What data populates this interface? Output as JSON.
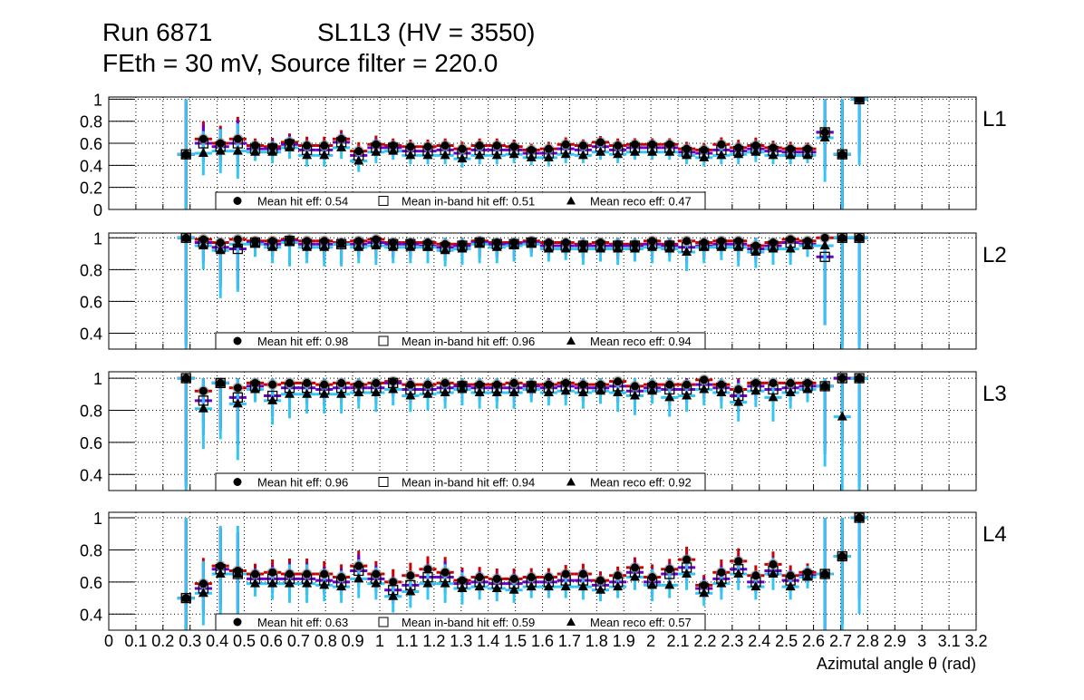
{
  "title": {
    "run": "Run 6871",
    "chamber": "SL1L3 (HV = 3550)",
    "settings": "FEth = 30 mV, Source filter = 220.0"
  },
  "colors": {
    "hit": "#cc0000",
    "inband": "#6a00d0",
    "reco": "#33c6f5",
    "marker": "#000000"
  },
  "chart_data": {
    "type": "scatter",
    "xlabel": "Azimutal angle θ (rad)",
    "xlim": [
      0,
      3.2
    ],
    "xticks": [
      "0",
      "0.1",
      "0.2",
      "0.3",
      "0.4",
      "0.5",
      "0.6",
      "0.7",
      "0.8",
      "0.9",
      "1",
      "1.1",
      "1.2",
      "1.3",
      "1.4",
      "1.5",
      "1.6",
      "1.7",
      "1.8",
      "1.9",
      "2",
      "2.1",
      "2.2",
      "2.3",
      "2.4",
      "2.5",
      "2.6",
      "2.7",
      "2.8",
      "2.9",
      "3",
      "3.1",
      "3.2"
    ],
    "grid": true,
    "bin_half_width": 0.032,
    "theta": [
      0.285,
      0.349,
      0.412,
      0.476,
      0.54,
      0.604,
      0.667,
      0.731,
      0.795,
      0.858,
      0.922,
      0.986,
      1.049,
      1.113,
      1.177,
      1.241,
      1.304,
      1.368,
      1.432,
      1.495,
      1.559,
      1.623,
      1.686,
      1.75,
      1.814,
      1.878,
      1.941,
      2.005,
      2.069,
      2.132,
      2.196,
      2.26,
      2.323,
      2.387,
      2.451,
      2.515,
      2.578,
      2.642,
      2.706,
      2.769
    ],
    "panels": [
      {
        "label": "L1",
        "ylim": [
          0,
          1.02
        ],
        "yticks": [
          "0",
          "0.2",
          "0.4",
          "0.6",
          "0.8",
          "1"
        ],
        "legend": {
          "hit": "Mean hit  eff: 0.54",
          "inband": "Mean in-band hit eff: 0.51",
          "reco": "Mean reco eff: 0.47"
        },
        "series": [
          {
            "name": "hit",
            "values": [
              0.5,
              0.64,
              0.6,
              0.64,
              0.58,
              0.57,
              0.61,
              0.58,
              0.58,
              0.64,
              0.53,
              0.59,
              0.58,
              0.57,
              0.57,
              0.58,
              0.55,
              0.58,
              0.58,
              0.57,
              0.54,
              0.55,
              0.59,
              0.58,
              0.61,
              0.58,
              0.59,
              0.59,
              0.59,
              0.55,
              0.54,
              0.59,
              0.56,
              0.58,
              0.56,
              0.55,
              0.55,
              0.7,
              0.5,
              1.0
            ]
          },
          {
            "name": "inband",
            "values": [
              0.5,
              0.6,
              0.57,
              0.6,
              0.55,
              0.55,
              0.59,
              0.54,
              0.54,
              0.61,
              0.49,
              0.56,
              0.56,
              0.53,
              0.53,
              0.54,
              0.51,
              0.54,
              0.54,
              0.54,
              0.51,
              0.51,
              0.55,
              0.54,
              0.57,
              0.54,
              0.56,
              0.56,
              0.56,
              0.52,
              0.51,
              0.54,
              0.53,
              0.55,
              0.53,
              0.52,
              0.52,
              0.7,
              0.5,
              1.0
            ]
          },
          {
            "name": "reco",
            "values": [
              0.5,
              0.51,
              0.53,
              0.53,
              0.52,
              0.52,
              0.56,
              0.49,
              0.49,
              0.56,
              0.44,
              0.52,
              0.53,
              0.49,
              0.49,
              0.49,
              0.46,
              0.49,
              0.49,
              0.5,
              0.47,
              0.47,
              0.5,
              0.49,
              0.52,
              0.5,
              0.52,
              0.52,
              0.52,
              0.49,
              0.47,
              0.49,
              0.5,
              0.52,
              0.49,
              0.49,
              0.49,
              0.65,
              0.5,
              1.0
            ]
          }
        ],
        "err": [
          0.6,
          0.2,
          0.2,
          0.25,
          0.08,
          0.1,
          0.1,
          0.1,
          0.1,
          0.1,
          0.1,
          0.1,
          0.08,
          0.08,
          0.08,
          0.08,
          0.08,
          0.08,
          0.08,
          0.08,
          0.07,
          0.08,
          0.08,
          0.07,
          0.07,
          0.08,
          0.07,
          0.07,
          0.07,
          0.08,
          0.08,
          0.08,
          0.09,
          0.09,
          0.08,
          0.08,
          0.07,
          0.4,
          0.6,
          0.6
        ]
      },
      {
        "label": "L2",
        "ylim": [
          0.3,
          1.03
        ],
        "yticks": [
          "0.4",
          "0.6",
          "0.8",
          "1"
        ],
        "legend": {
          "hit": "Mean hit  eff: 0.98",
          "inband": "Mean in-band hit eff: 0.96",
          "reco": "Mean reco eff: 0.94"
        },
        "series": [
          {
            "name": "hit",
            "values": [
              1.0,
              0.99,
              0.97,
              0.99,
              0.98,
              0.98,
              0.99,
              0.98,
              0.98,
              0.97,
              0.98,
              0.99,
              0.97,
              0.97,
              0.97,
              0.96,
              0.96,
              0.98,
              0.97,
              0.97,
              0.98,
              0.97,
              0.97,
              0.96,
              0.97,
              0.96,
              0.96,
              0.98,
              0.96,
              0.98,
              0.97,
              0.98,
              0.98,
              0.95,
              0.97,
              0.99,
              0.98,
              1.0,
              1.0,
              1.0
            ]
          },
          {
            "name": "inband",
            "values": [
              1.0,
              0.97,
              0.94,
              0.93,
              0.97,
              0.96,
              0.98,
              0.96,
              0.96,
              0.96,
              0.96,
              0.97,
              0.96,
              0.96,
              0.95,
              0.94,
              0.95,
              0.97,
              0.96,
              0.96,
              0.97,
              0.95,
              0.95,
              0.95,
              0.95,
              0.95,
              0.95,
              0.96,
              0.95,
              0.94,
              0.95,
              0.96,
              0.96,
              0.93,
              0.95,
              0.97,
              0.96,
              0.88,
              1.0,
              1.0
            ]
          },
          {
            "name": "reco",
            "values": [
              1.0,
              0.95,
              0.92,
              0.96,
              0.96,
              0.94,
              0.97,
              0.94,
              0.94,
              0.96,
              0.94,
              0.95,
              0.94,
              0.94,
              0.94,
              0.92,
              0.93,
              0.96,
              0.94,
              0.95,
              0.96,
              0.93,
              0.93,
              0.93,
              0.93,
              0.93,
              0.93,
              0.94,
              0.93,
              0.91,
              0.94,
              0.94,
              0.94,
              0.91,
              0.93,
              0.93,
              0.95,
              0.95,
              1.0,
              1.0
            ]
          }
        ],
        "err": [
          0.8,
          0.15,
          0.3,
          0.3,
          0.08,
          0.1,
          0.15,
          0.1,
          0.12,
          0.14,
          0.1,
          0.12,
          0.1,
          0.1,
          0.1,
          0.1,
          0.1,
          0.12,
          0.1,
          0.1,
          0.08,
          0.08,
          0.07,
          0.1,
          0.08,
          0.1,
          0.08,
          0.1,
          0.08,
          0.12,
          0.1,
          0.08,
          0.12,
          0.1,
          0.1,
          0.1,
          0.07,
          0.5,
          0.8,
          0.8
        ]
      },
      {
        "label": "L3",
        "ylim": [
          0.3,
          1.04
        ],
        "yticks": [
          "0.4",
          "0.6",
          "0.8",
          "1"
        ],
        "legend": {
          "hit": "Mean hit  eff: 0.96",
          "inband": "Mean in-band hit eff: 0.94",
          "reco": "Mean reco eff: 0.92"
        },
        "series": [
          {
            "name": "hit",
            "values": [
              1.0,
              0.92,
              0.97,
              0.94,
              0.97,
              0.96,
              0.97,
              0.97,
              0.96,
              0.97,
              0.96,
              0.97,
              0.98,
              0.96,
              0.96,
              0.97,
              0.96,
              0.96,
              0.96,
              0.97,
              0.96,
              0.96,
              0.97,
              0.96,
              0.96,
              0.98,
              0.95,
              0.96,
              0.96,
              0.96,
              0.99,
              0.96,
              0.93,
              0.97,
              0.97,
              0.97,
              0.97,
              0.95,
              1.0,
              1.0
            ]
          },
          {
            "name": "inband",
            "values": [
              1.0,
              0.86,
              0.97,
              0.88,
              0.95,
              0.89,
              0.94,
              0.94,
              0.93,
              0.94,
              0.94,
              0.94,
              0.97,
              0.93,
              0.93,
              0.94,
              0.95,
              0.94,
              0.94,
              0.94,
              0.95,
              0.94,
              0.95,
              0.94,
              0.94,
              0.95,
              0.92,
              0.94,
              0.93,
              0.93,
              0.96,
              0.94,
              0.89,
              0.95,
              0.93,
              0.94,
              0.95,
              0.95,
              1.0,
              1.0
            ]
          },
          {
            "name": "reco",
            "values": [
              1.0,
              0.81,
              0.97,
              0.84,
              0.93,
              0.86,
              0.9,
              0.9,
              0.9,
              0.9,
              0.91,
              0.91,
              0.93,
              0.89,
              0.9,
              0.91,
              0.93,
              0.91,
              0.91,
              0.91,
              0.93,
              0.91,
              0.92,
              0.91,
              0.92,
              0.91,
              0.89,
              0.92,
              0.88,
              0.89,
              0.93,
              0.91,
              0.85,
              0.92,
              0.88,
              0.91,
              0.93,
              0.95,
              0.76,
              1.0
            ]
          }
        ],
        "err": [
          0.8,
          0.25,
          0.35,
          0.35,
          0.08,
          0.15,
          0.15,
          0.12,
          0.12,
          0.12,
          0.1,
          0.12,
          0.1,
          0.1,
          0.1,
          0.1,
          0.1,
          0.1,
          0.1,
          0.1,
          0.08,
          0.08,
          0.09,
          0.1,
          0.08,
          0.12,
          0.12,
          0.08,
          0.12,
          0.1,
          0.1,
          0.1,
          0.12,
          0.1,
          0.15,
          0.1,
          0.08,
          0.5,
          0.5,
          0.8
        ]
      },
      {
        "label": "L4",
        "ylim": [
          0.3,
          1.034
        ],
        "yticks": [
          "0.4",
          "0.6",
          "0.8",
          "1"
        ],
        "legend": {
          "hit": "Mean hit  eff: 0.63",
          "inband": "Mean in-band hit eff: 0.59",
          "reco": "Mean reco eff: 0.57"
        },
        "series": [
          {
            "name": "hit",
            "values": [
              0.5,
              0.59,
              0.7,
              0.67,
              0.65,
              0.66,
              0.65,
              0.65,
              0.65,
              0.63,
              0.7,
              0.65,
              0.6,
              0.64,
              0.68,
              0.66,
              0.61,
              0.63,
              0.62,
              0.62,
              0.63,
              0.63,
              0.65,
              0.65,
              0.61,
              0.64,
              0.69,
              0.63,
              0.68,
              0.74,
              0.58,
              0.66,
              0.73,
              0.64,
              0.71,
              0.64,
              0.66,
              0.65,
              0.76,
              1.0
            ]
          },
          {
            "name": "inband",
            "values": [
              0.5,
              0.56,
              0.68,
              0.65,
              0.62,
              0.62,
              0.62,
              0.62,
              0.61,
              0.6,
              0.67,
              0.62,
              0.55,
              0.58,
              0.63,
              0.63,
              0.59,
              0.6,
              0.59,
              0.59,
              0.6,
              0.6,
              0.61,
              0.61,
              0.58,
              0.6,
              0.66,
              0.6,
              0.65,
              0.69,
              0.56,
              0.62,
              0.68,
              0.6,
              0.67,
              0.61,
              0.64,
              0.65,
              0.76,
              1.0
            ]
          },
          {
            "name": "reco",
            "values": [
              0.5,
              0.53,
              0.65,
              0.65,
              0.59,
              0.59,
              0.59,
              0.59,
              0.58,
              0.57,
              0.62,
              0.59,
              0.51,
              0.54,
              0.59,
              0.59,
              0.56,
              0.57,
              0.56,
              0.55,
              0.57,
              0.57,
              0.57,
              0.57,
              0.55,
              0.57,
              0.63,
              0.58,
              0.58,
              0.65,
              0.53,
              0.59,
              0.65,
              0.57,
              0.65,
              0.57,
              0.63,
              0.65,
              0.76,
              1.0
            ]
          }
        ],
        "err": [
          0.6,
          0.2,
          0.3,
          0.3,
          0.08,
          0.1,
          0.12,
          0.12,
          0.1,
          0.1,
          0.12,
          0.1,
          0.1,
          0.1,
          0.1,
          0.12,
          0.1,
          0.08,
          0.08,
          0.08,
          0.07,
          0.07,
          0.07,
          0.08,
          0.07,
          0.07,
          0.08,
          0.1,
          0.08,
          0.1,
          0.08,
          0.1,
          0.1,
          0.08,
          0.1,
          0.08,
          0.07,
          0.5,
          0.5,
          0.6
        ]
      }
    ]
  }
}
